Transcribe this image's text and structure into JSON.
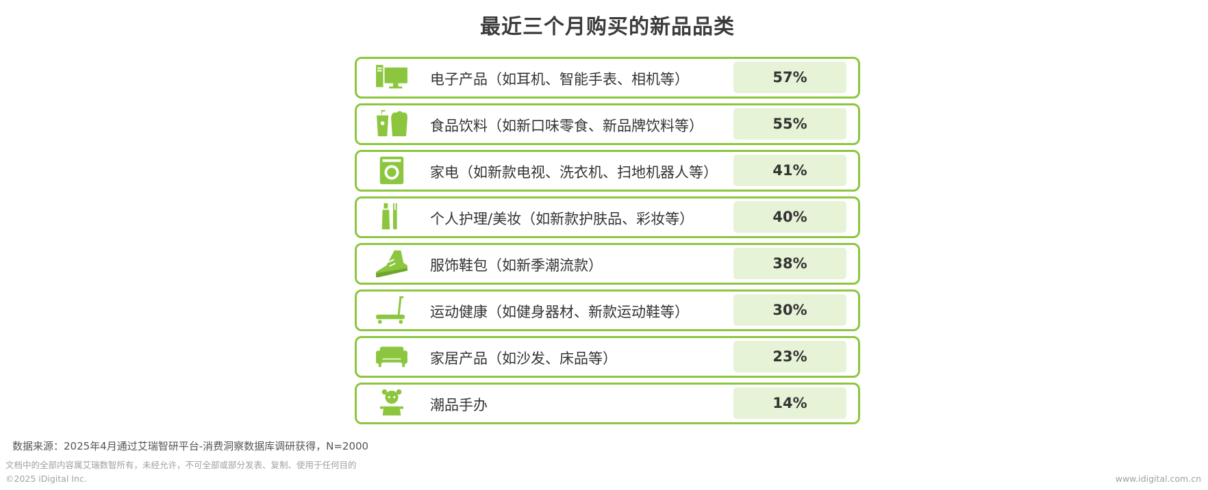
{
  "chart_data": {
    "type": "table",
    "title": "最近三个月购买的新品品类",
    "accent_color": "#8cc63f",
    "value_box_color": "#e6f3d7",
    "rows": [
      {
        "label": "电子产品（如耳机、智能手表、相机等）",
        "value": 57,
        "value_label": "57%",
        "icon": "computer-icon"
      },
      {
        "label": "食品饮料（如新口味零食、新品牌饮料等）",
        "value": 55,
        "value_label": "55%",
        "icon": "drink-snack-icon"
      },
      {
        "label": "家电（如新款电视、洗衣机、扫地机器人等）",
        "value": 41,
        "value_label": "41%",
        "icon": "washing-machine-icon"
      },
      {
        "label": "个人护理/美妆（如新款护肤品、彩妆等）",
        "value": 40,
        "value_label": "40%",
        "icon": "toiletries-icon"
      },
      {
        "label": "服饰鞋包（如新季潮流款）",
        "value": 38,
        "value_label": "38%",
        "icon": "sneaker-icon"
      },
      {
        "label": "运动健康（如健身器材、新款运动鞋等）",
        "value": 30,
        "value_label": "30%",
        "icon": "treadmill-icon"
      },
      {
        "label": "家居产品（如沙发、床品等）",
        "value": 23,
        "value_label": "23%",
        "icon": "sofa-icon"
      },
      {
        "label": "潮品手办",
        "value": 14,
        "value_label": "14%",
        "icon": "toy-figure-icon"
      }
    ]
  },
  "footer": {
    "source": "数据来源：2025年4月通过艾瑞智研平台-消费洞察数据库调研获得，N=2000",
    "rights": "文档中的全部内容属艾瑞数智所有，未经允许，不可全部或部分发表、复制、使用于任何目的",
    "copyright": "©2025 iDigital Inc.",
    "website": "www.idigital.com.cn"
  }
}
